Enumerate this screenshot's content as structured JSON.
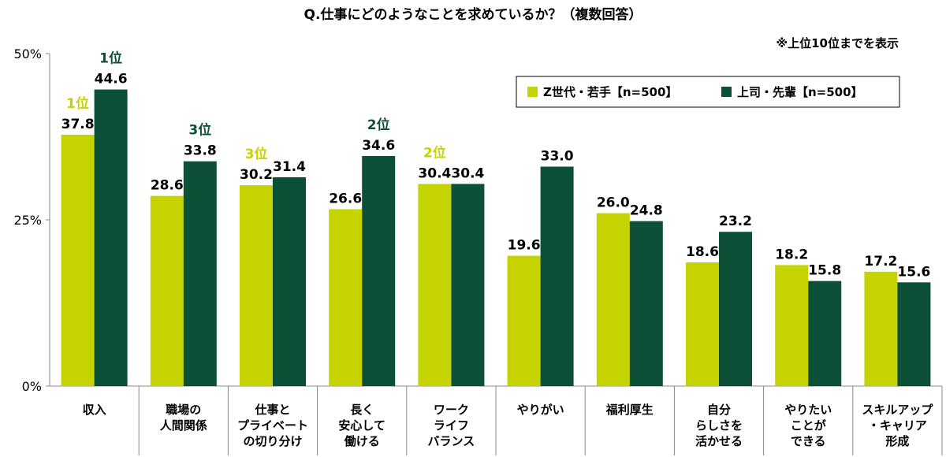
{
  "chart_data": {
    "type": "bar",
    "title": "Q.仕事にどのようなことを求めているか？（複数回答）",
    "note": "※上位10位までを表示",
    "ylim": [
      0,
      50
    ],
    "yticks": [
      "0%",
      "25%",
      "50%"
    ],
    "ytick_values": [
      0,
      25,
      50
    ],
    "grid": false,
    "legend_position": "top-right",
    "categories": [
      [
        "収入"
      ],
      [
        "職場の",
        "人間関係"
      ],
      [
        "仕事と",
        "プライベート",
        "の切り分け"
      ],
      [
        "長く",
        "安心して",
        "働ける"
      ],
      [
        "ワーク",
        "ライフ",
        "バランス"
      ],
      [
        "やりがい"
      ],
      [
        "福利厚生"
      ],
      [
        "自分",
        "らしさを",
        "活かせる"
      ],
      [
        "やりたい",
        "ことが",
        "できる"
      ],
      [
        "スキルアップ",
        "・キャリア",
        "形成"
      ]
    ],
    "series": [
      {
        "name": "Z世代・若手【n=500】",
        "color": "#c5d400",
        "values": [
          37.8,
          28.6,
          30.2,
          26.6,
          30.4,
          19.6,
          26.0,
          18.6,
          18.2,
          17.2
        ],
        "labels": [
          "37.8",
          "28.6",
          "30.2",
          "26.6",
          "30.4",
          "19.6",
          "26.0",
          "18.6",
          "18.2",
          "17.2"
        ],
        "ranks": [
          "1位",
          "",
          "3位",
          "",
          "2位",
          "",
          "",
          "",
          "",
          ""
        ]
      },
      {
        "name": "上司・先輩【n=500】",
        "color": "#0d5038",
        "values": [
          44.6,
          33.8,
          31.4,
          34.6,
          30.4,
          33.0,
          24.8,
          23.2,
          15.8,
          15.6
        ],
        "labels": [
          "44.6",
          "33.8",
          "31.4",
          "34.6",
          "30.4",
          "33.0",
          "24.8",
          "23.2",
          "15.8",
          "15.6"
        ],
        "ranks": [
          "1位",
          "3位",
          "",
          "2位",
          "",
          "",
          "",
          "",
          "",
          ""
        ]
      }
    ]
  }
}
